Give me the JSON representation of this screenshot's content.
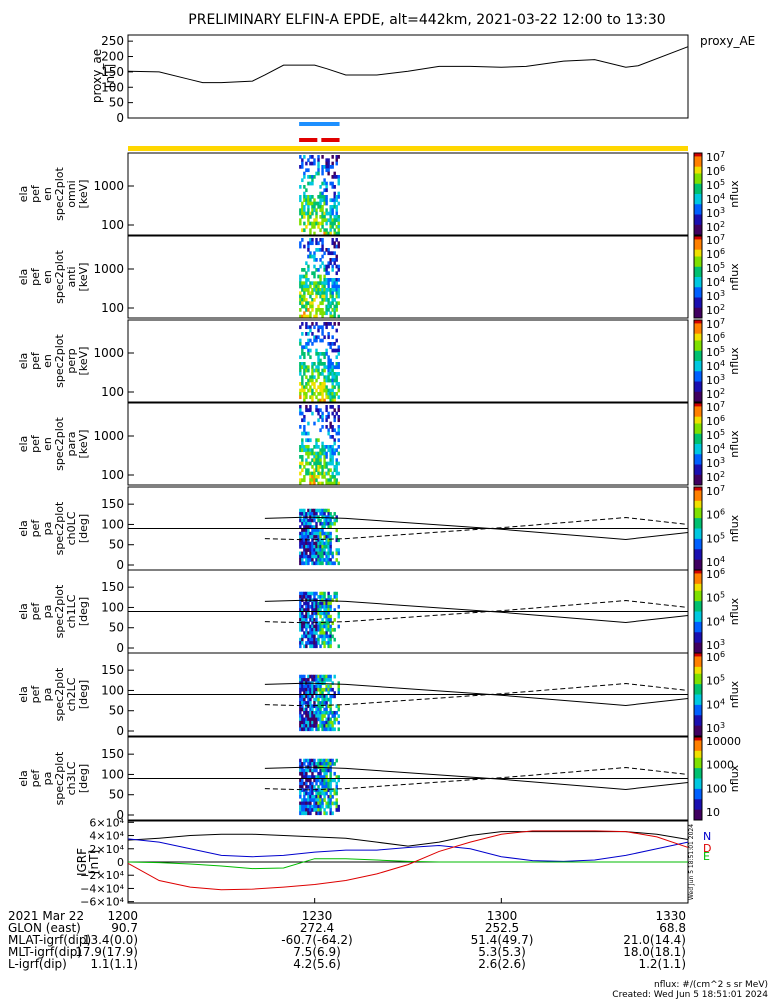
{
  "title": "PRELIMINARY ELFIN-A EPDE, alt=442km, 2021-03-22 12:00 to 13:30",
  "time_range_min": [
    0,
    90
  ],
  "x_ticks": [
    "1200",
    "1230",
    "1300",
    "1330"
  ],
  "proxy_ae": {
    "legend": "proxy_AE",
    "ylabel": [
      "proxy_ae",
      "[nT]"
    ],
    "ylim": [
      0,
      270
    ],
    "yticks": [
      "0",
      "50",
      "100",
      "150",
      "200",
      "250"
    ],
    "chart_data": {
      "type": "line",
      "x_min": [
        0,
        5,
        10,
        12,
        15,
        20,
        22,
        25,
        30,
        32,
        35,
        40,
        45,
        50,
        55,
        60,
        64,
        70,
        75,
        80,
        82,
        90
      ],
      "y": [
        152,
        150,
        125,
        115,
        115,
        120,
        140,
        172,
        172,
        160,
        140,
        140,
        152,
        168,
        168,
        165,
        168,
        185,
        190,
        165,
        170,
        232
      ]
    }
  },
  "bars": {
    "blue": {
      "x_min": [
        27.5,
        34
      ],
      "color": "#1e90ff"
    },
    "red": {
      "x_min": [
        27.5,
        34
      ],
      "color": "#e00000"
    },
    "yellow": {
      "x_min": [
        0,
        90
      ],
      "color": "#ffd700"
    }
  },
  "energy_panels": [
    {
      "labels": [
        "ela",
        "pef",
        "en",
        "spec2plot",
        "omni",
        "[keV]"
      ],
      "yticks": [
        "100",
        "1000"
      ],
      "cbar_ticks": [
        "10^7",
        "10^6",
        "10^5",
        "10^4",
        "10^3",
        "10^2"
      ],
      "cbar_label": "nflux"
    },
    {
      "labels": [
        "ela",
        "pef",
        "en",
        "spec2plot",
        "anti",
        "[keV]"
      ],
      "yticks": [
        "100",
        "1000"
      ],
      "cbar_ticks": [
        "10^7",
        "10^6",
        "10^5",
        "10^4",
        "10^3",
        "10^2"
      ],
      "cbar_label": "nflux"
    },
    {
      "labels": [
        "ela",
        "pef",
        "en",
        "spec2plot",
        "perp",
        "[keV]"
      ],
      "yticks": [
        "100",
        "1000"
      ],
      "cbar_ticks": [
        "10^7",
        "10^6",
        "10^5",
        "10^4",
        "10^3",
        "10^2"
      ],
      "cbar_label": "nflux"
    },
    {
      "labels": [
        "ela",
        "pef",
        "en",
        "spec2plot",
        "para",
        "[keV]"
      ],
      "yticks": [
        "100",
        "1000"
      ],
      "cbar_ticks": [
        "10^7",
        "10^6",
        "10^5",
        "10^4",
        "10^3",
        "10^2"
      ],
      "cbar_label": "nflux"
    }
  ],
  "pa_panels": [
    {
      "labels": [
        "ela",
        "pef",
        "pa",
        "spec2plot",
        "ch0LC",
        "[deg]"
      ],
      "yticks": [
        "0",
        "50",
        "100",
        "150"
      ],
      "cbar_ticks": [
        "10^7",
        "10^6",
        "10^5",
        "10^4"
      ],
      "cbar_label": "nflux"
    },
    {
      "labels": [
        "ela",
        "pef",
        "pa",
        "spec2plot",
        "ch1LC",
        "[deg]"
      ],
      "yticks": [
        "0",
        "50",
        "100",
        "150"
      ],
      "cbar_ticks": [
        "10^6",
        "10^5",
        "10^4",
        "10^3"
      ],
      "cbar_label": "nflux"
    },
    {
      "labels": [
        "ela",
        "pef",
        "pa",
        "spec2plot",
        "ch2LC",
        "[deg]"
      ],
      "yticks": [
        "0",
        "50",
        "100",
        "150"
      ],
      "cbar_ticks": [
        "10^6",
        "10^5",
        "10^4",
        "10^3"
      ],
      "cbar_label": "nflux"
    },
    {
      "labels": [
        "ela",
        "pef",
        "pa",
        "spec2plot",
        "ch3LC",
        "[deg]"
      ],
      "yticks": [
        "0",
        "50",
        "100",
        "150"
      ],
      "cbar_ticks": [
        "10000",
        "1000",
        "100",
        "10"
      ],
      "cbar_label": "nflux"
    }
  ],
  "pa_lines": {
    "x_min": [
      22,
      29,
      35,
      60,
      80,
      90
    ],
    "solid_deg": [
      115,
      118,
      115,
      88,
      63,
      80
    ],
    "dashed_deg": [
      65,
      62,
      65,
      92,
      117,
      100
    ]
  },
  "igrf": {
    "ylabel": [
      "IGRF",
      "[nT]"
    ],
    "ylim": [
      -62000,
      62000
    ],
    "yticks": [
      "6×10⁴",
      "4×10⁴",
      "2×10⁴",
      "0",
      "−2×10⁴",
      "−4×10⁴",
      "−6×10⁴"
    ],
    "side_labels": {
      "n": "N",
      "e": "E",
      "d": "D"
    },
    "side_note": "Wed Jun 5 18:51:01 2024",
    "chart_data": {
      "type": "line",
      "x_min": [
        0,
        5,
        10,
        15,
        20,
        25,
        30,
        35,
        40,
        45,
        50,
        55,
        60,
        65,
        70,
        75,
        80,
        85,
        90
      ],
      "series": [
        {
          "key": "black",
          "color": "#000000",
          "values": [
            33000,
            36000,
            40000,
            42000,
            42000,
            40000,
            38000,
            36000,
            30000,
            24000,
            30000,
            40000,
            46000,
            46000,
            46000,
            46000,
            46000,
            42000,
            34000
          ]
        },
        {
          "key": "blue",
          "color": "#0000cc",
          "values": [
            35000,
            30000,
            20000,
            10000,
            8000,
            10000,
            15000,
            18000,
            18000,
            22000,
            25000,
            20000,
            8000,
            2000,
            1000,
            3000,
            10000,
            20000,
            30000
          ]
        },
        {
          "key": "green",
          "color": "#00bb00",
          "values": [
            0,
            -1000,
            -3000,
            -6000,
            -10000,
            -9000,
            5000,
            5000,
            3000,
            1000,
            0,
            0,
            0,
            0,
            0,
            0,
            0,
            0,
            0
          ]
        },
        {
          "key": "red",
          "color": "#dd0000",
          "values": [
            -2000,
            -28000,
            -38000,
            -42000,
            -41000,
            -38000,
            -34000,
            -28000,
            -18000,
            -4000,
            16000,
            30000,
            42000,
            47000,
            47000,
            47000,
            46000,
            38000,
            22000
          ]
        }
      ]
    }
  },
  "ephemeris": [
    {
      "label": "2021 Mar 22",
      "values": [
        "1200",
        "1230",
        "1300",
        "1330"
      ]
    },
    {
      "label": "GLON (east)",
      "values": [
        "90.7",
        "272.4",
        "252.5",
        "68.8"
      ]
    },
    {
      "label": "MLAT-igrf(dip)",
      "values": [
        "13.4(0.0)",
        "-60.7(-64.2)",
        "51.4(49.7)",
        "21.0(14.4)"
      ]
    },
    {
      "label": "MLT-igrf(dip)",
      "values": [
        "17.9(17.9)",
        "7.5(6.9)",
        "5.3(5.3)",
        "18.0(18.1)"
      ]
    },
    {
      "label": "L-igrf(dip)",
      "values": [
        "1.1(1.1)",
        "4.2(5.6)",
        "2.6(2.6)",
        "1.2(1.1)"
      ]
    }
  ],
  "footer": {
    "units": "nflux: #/(cm^2 s sr MeV)",
    "created": "Created: Wed Jun  5 18:51:01 2024"
  }
}
